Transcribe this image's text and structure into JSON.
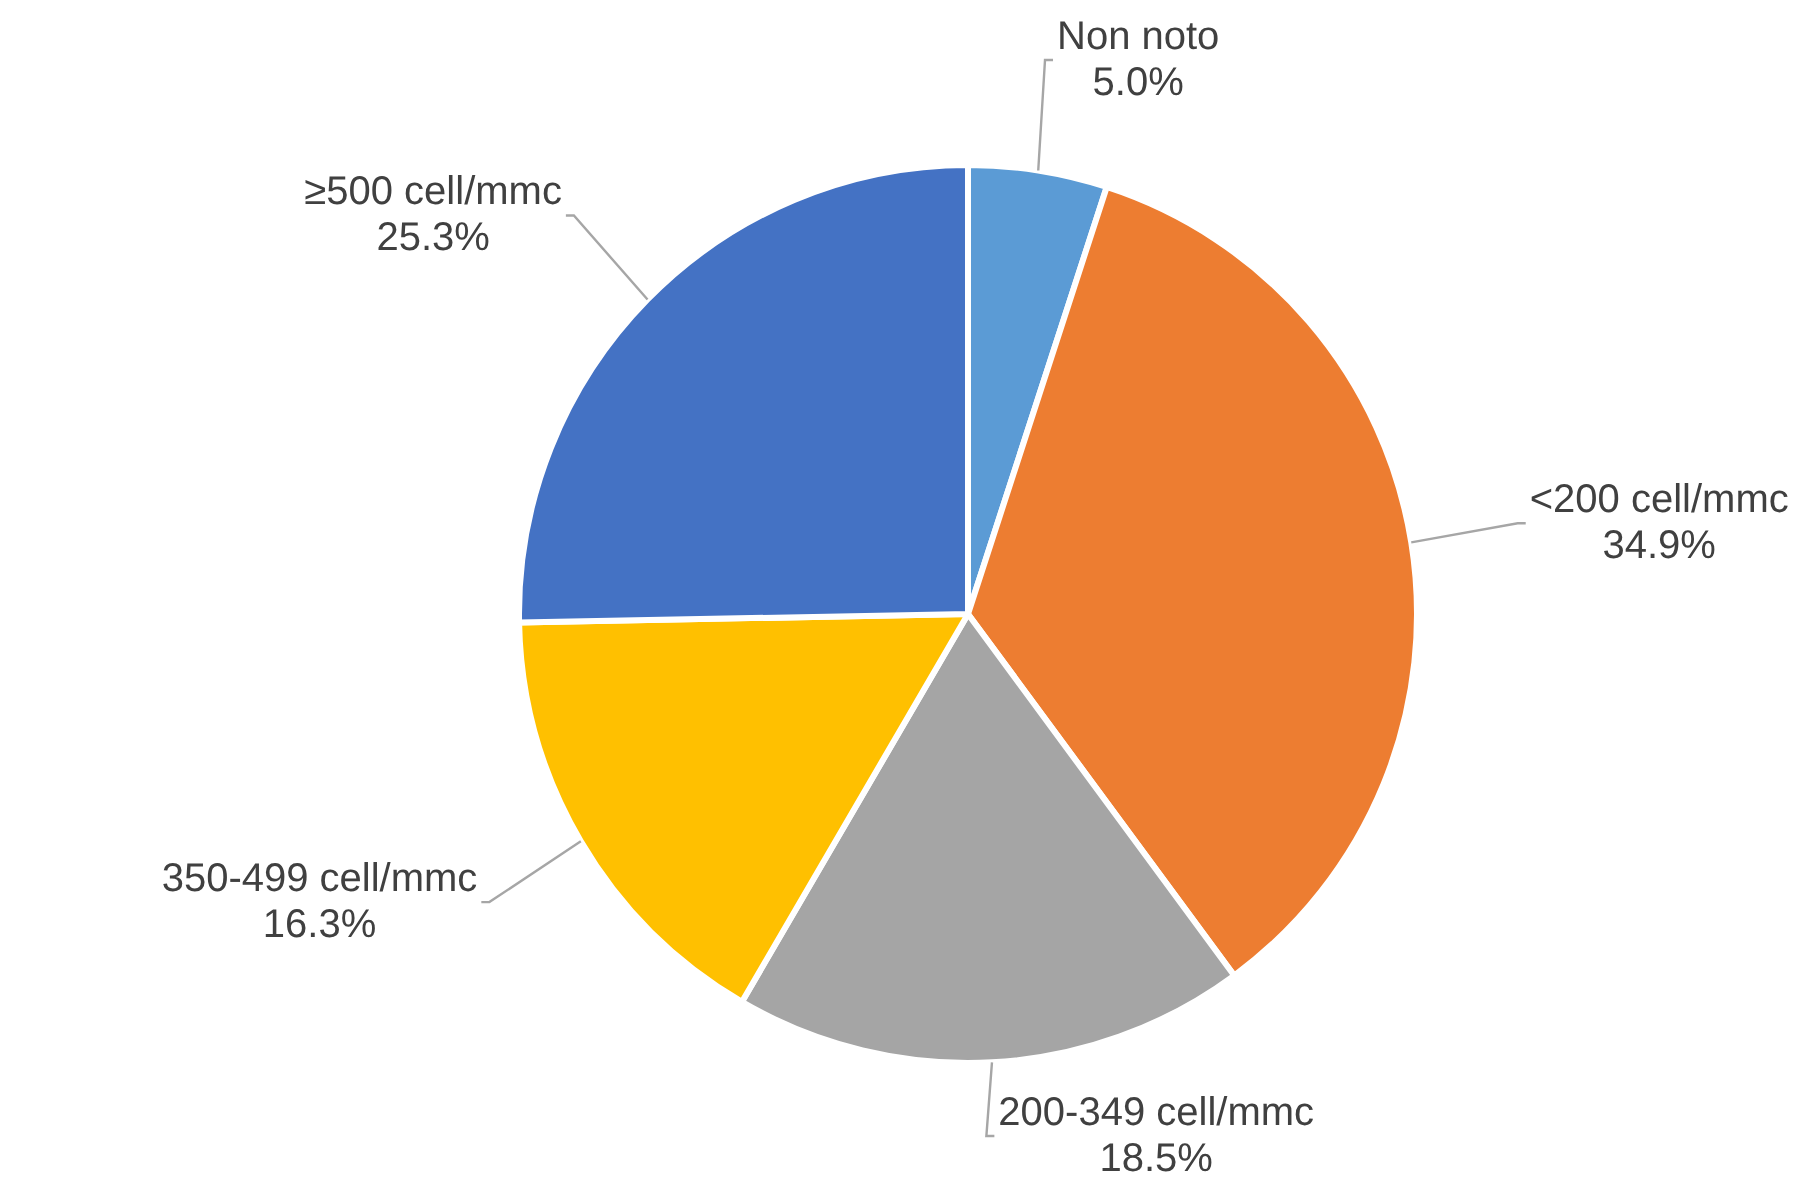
{
  "chart_data": {
    "type": "pie",
    "categories": [
      "Non noto",
      "<200 cell/mmc",
      "200-349 cell/mmc",
      "350-499 cell/mmc",
      "≥500 cell/mmc"
    ],
    "values": [
      5.0,
      34.9,
      18.5,
      16.3,
      25.3
    ],
    "value_labels": [
      "5.0%",
      "34.9%",
      "18.5%",
      "16.3%",
      "25.3%"
    ],
    "colors": [
      "#5b9bd5",
      "#ed7d31",
      "#a5a5a5",
      "#ffc000",
      "#4472c4"
    ]
  }
}
